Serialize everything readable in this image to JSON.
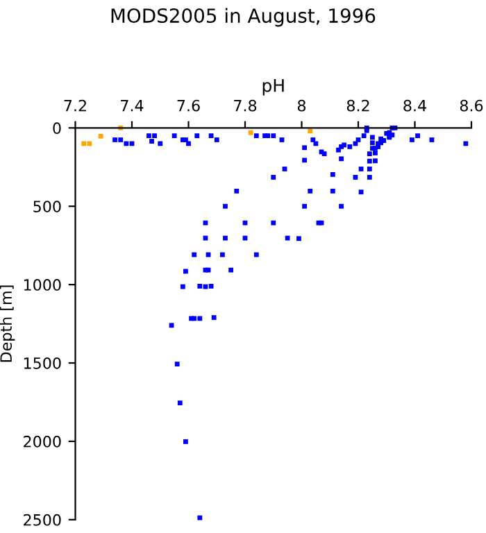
{
  "chart_data": {
    "type": "scatter",
    "title": "MODS2005 in August, 1996",
    "xlabel": "pH",
    "ylabel": "Depth [m]",
    "xlim": [
      7.2,
      8.6
    ],
    "xticks": [
      7.2,
      7.4,
      7.6,
      7.8,
      8,
      8.2,
      8.4,
      8.6
    ],
    "ylim": [
      2500,
      0
    ],
    "yticks": [
      0,
      500,
      1000,
      1500,
      2000,
      2500
    ],
    "grid": false,
    "legend": false,
    "marker": "square",
    "series": [
      {
        "color": "#ffa500",
        "x": [
          7.23,
          7.25,
          7.29,
          7.36,
          7.82,
          8.03
        ],
        "values": [
          100,
          100,
          53,
          0,
          30,
          20
        ]
      },
      {
        "color": "#0000ff",
        "x": [
          7.34,
          7.36,
          7.38,
          7.4,
          7.46,
          7.48,
          7.47,
          7.5,
          7.55,
          7.58,
          7.59,
          7.6,
          7.63,
          7.68,
          7.7,
          7.84,
          7.87,
          7.88,
          7.9,
          7.93,
          7.94,
          7.9,
          7.77,
          7.73,
          8.01,
          8.01,
          8.04,
          8.05,
          8.07,
          8.08,
          8.11,
          8.03,
          8.11,
          8.01,
          8.14,
          8.13,
          8.14,
          8.15,
          8.14,
          8.17,
          8.19,
          8.2,
          8.22,
          8.23,
          8.23,
          8.21,
          8.19,
          8.21,
          8.24,
          8.24,
          8.24,
          8.24,
          8.25,
          8.25,
          8.25,
          8.26,
          8.26,
          8.26,
          8.27,
          8.27,
          8.28,
          8.28,
          8.29,
          8.29,
          8.3,
          8.31,
          8.31,
          8.32,
          8.33,
          8.32,
          8.31,
          8.39,
          8.41,
          8.46,
          8.58,
          7.66,
          7.8,
          7.9,
          8.06,
          8.07,
          7.66,
          7.73,
          7.8,
          7.95,
          7.99,
          7.62,
          7.67,
          7.72,
          7.84,
          7.59,
          7.66,
          7.67,
          7.75,
          7.58,
          7.64,
          7.66,
          7.68,
          7.61,
          7.62,
          7.64,
          7.69,
          7.54,
          7.56,
          7.57,
          7.59,
          7.64
        ],
        "values": [
          76,
          76,
          100,
          100,
          50,
          50,
          85,
          100,
          50,
          76,
          76,
          100,
          50,
          50,
          76,
          50,
          50,
          50,
          50,
          76,
          262,
          315,
          403,
          500,
          126,
          206,
          76,
          100,
          153,
          165,
          297,
          403,
          403,
          500,
          500,
          141,
          120,
          109,
          197,
          120,
          100,
          76,
          50,
          0,
          17,
          262,
          315,
          409,
          262,
          315,
          212,
          165,
          60,
          95,
          130,
          160,
          129,
          210,
          100,
          120,
          95,
          70,
          80,
          80,
          35,
          53,
          30,
          0,
          0,
          45,
          60,
          76,
          50,
          76,
          100,
          606,
          606,
          606,
          606,
          606,
          703,
          703,
          703,
          703,
          706,
          809,
          809,
          809,
          809,
          915,
          907,
          907,
          907,
          1013,
          1010,
          1013,
          1010,
          1216,
          1216,
          1216,
          1210,
          1260,
          1507,
          1755,
          2002,
          2488
        ]
      }
    ]
  }
}
